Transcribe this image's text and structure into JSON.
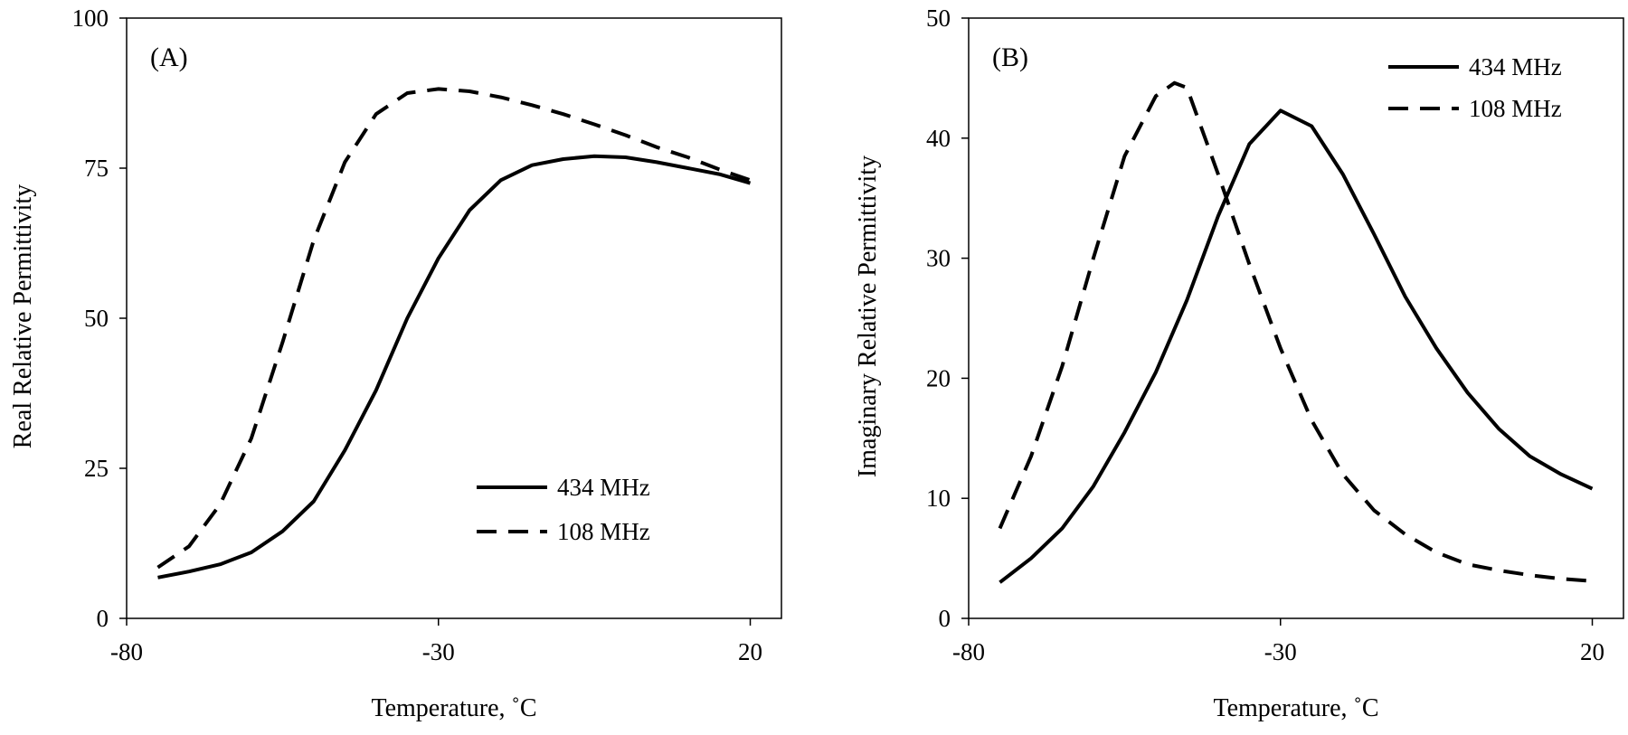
{
  "chart_data": [
    {
      "type": "line",
      "panel": "(A)",
      "xlabel": "Temperature, ˚C",
      "ylabel": "Real Relative Permittivity",
      "xlim": [
        -80,
        25
      ],
      "ylim": [
        0,
        100
      ],
      "xticks": [
        -80,
        -30,
        20
      ],
      "yticks": [
        0,
        25,
        50,
        75,
        100
      ],
      "legend_position": "bottom-right",
      "series": [
        {
          "name": "434 MHz",
          "style": "solid",
          "x": [
            -75,
            -70,
            -65,
            -60,
            -55,
            -50,
            -45,
            -40,
            -35,
            -30,
            -25,
            -20,
            -15,
            -10,
            -5,
            0,
            5,
            10,
            15,
            20
          ],
          "y": [
            6.8,
            7.8,
            9.0,
            11.0,
            14.5,
            19.5,
            28.0,
            38.0,
            50.0,
            60.0,
            68.0,
            73.0,
            75.5,
            76.5,
            77.0,
            76.8,
            76.0,
            75.0,
            74.0,
            72.5
          ]
        },
        {
          "name": "108 MHz",
          "style": "dashed",
          "x": [
            -75,
            -70,
            -65,
            -60,
            -55,
            -50,
            -45,
            -40,
            -35,
            -30,
            -25,
            -20,
            -15,
            -10,
            -5,
            0,
            5,
            10,
            15,
            20
          ],
          "y": [
            8.5,
            12.0,
            19.0,
            30.0,
            46.0,
            63.0,
            76.0,
            84.0,
            87.5,
            88.2,
            87.8,
            86.8,
            85.5,
            84.0,
            82.3,
            80.5,
            78.5,
            76.8,
            74.8,
            73.0
          ]
        }
      ]
    },
    {
      "type": "line",
      "panel": "(B)",
      "xlabel": "Temperature, ˚C",
      "ylabel": "Imaginary Relative Permittivity",
      "xlim": [
        -80,
        25
      ],
      "ylim": [
        0,
        50
      ],
      "xticks": [
        -80,
        -30,
        20
      ],
      "yticks": [
        0,
        10,
        20,
        30,
        40,
        50
      ],
      "legend_position": "top-right",
      "series": [
        {
          "name": "434 MHz",
          "style": "solid",
          "x": [
            -75,
            -70,
            -65,
            -60,
            -55,
            -50,
            -45,
            -40,
            -35,
            -30,
            -25,
            -20,
            -15,
            -10,
            -5,
            0,
            5,
            10,
            15,
            20
          ],
          "y": [
            3.0,
            5.0,
            7.5,
            11.0,
            15.5,
            20.5,
            26.5,
            33.5,
            39.5,
            42.3,
            41.0,
            37.0,
            32.0,
            26.8,
            22.5,
            18.8,
            15.8,
            13.5,
            12.0,
            10.8
          ]
        },
        {
          "name": "108 MHz",
          "style": "dashed",
          "x": [
            -75,
            -70,
            -65,
            -60,
            -55,
            -50,
            -47,
            -45,
            -40,
            -35,
            -30,
            -25,
            -20,
            -15,
            -10,
            -5,
            0,
            5,
            10,
            15,
            20
          ],
          "y": [
            7.5,
            13.5,
            21.0,
            30.0,
            38.5,
            43.5,
            44.6,
            44.2,
            37.0,
            29.5,
            22.5,
            16.5,
            12.0,
            9.0,
            7.0,
            5.5,
            4.5,
            4.0,
            3.6,
            3.3,
            3.1
          ]
        }
      ]
    }
  ]
}
